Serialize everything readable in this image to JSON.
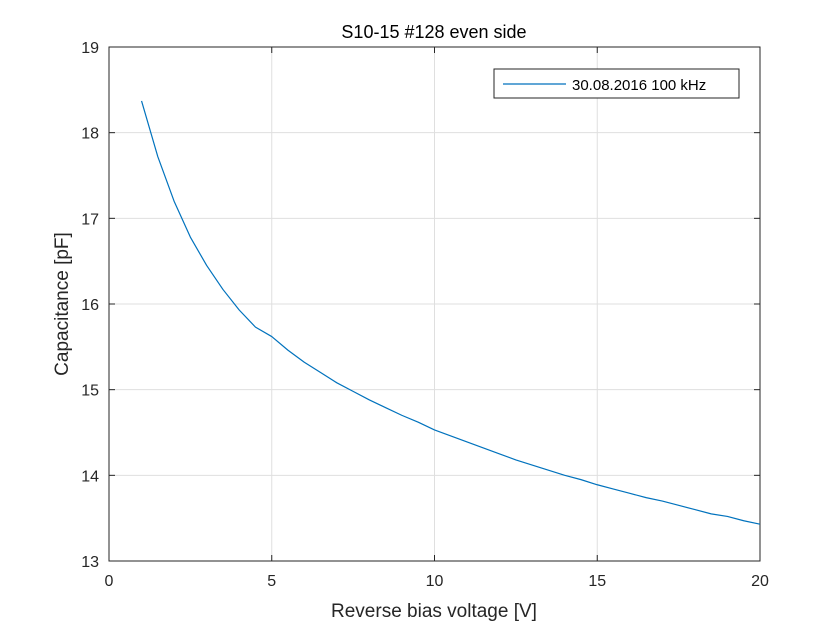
{
  "chart_data": {
    "type": "line",
    "title": "S10-15 #128 even side",
    "xlabel": "Reverse bias voltage [V]",
    "ylabel": "Capacitance [pF]",
    "xlim": [
      0,
      20
    ],
    "ylim": [
      13,
      19
    ],
    "xticks": [
      "0",
      "5",
      "10",
      "15",
      "20"
    ],
    "yticks": [
      "13",
      "14",
      "15",
      "16",
      "17",
      "18",
      "19"
    ],
    "grid": true,
    "legend_position": "top-right",
    "series": [
      {
        "name": "30.08.2016 100 kHz",
        "color": "#0072bd",
        "x": [
          1,
          1.5,
          2,
          2.5,
          3,
          3.5,
          4,
          4.5,
          5,
          5.5,
          6,
          6.5,
          7,
          7.5,
          8,
          8.5,
          9,
          9.5,
          10,
          10.5,
          11,
          11.5,
          12,
          12.5,
          13,
          13.5,
          14,
          14.5,
          15,
          15.5,
          16,
          16.5,
          17,
          17.5,
          18,
          18.5,
          19,
          19.5,
          20
        ],
        "y": [
          18.37,
          17.72,
          17.2,
          16.78,
          16.45,
          16.17,
          15.93,
          15.73,
          15.62,
          15.46,
          15.32,
          15.2,
          15.08,
          14.98,
          14.88,
          14.79,
          14.7,
          14.62,
          14.53,
          14.46,
          14.39,
          14.32,
          14.25,
          14.18,
          14.12,
          14.06,
          14.0,
          13.95,
          13.89,
          13.84,
          13.79,
          13.74,
          13.7,
          13.65,
          13.6,
          13.55,
          13.52,
          13.47,
          13.43
        ]
      }
    ]
  }
}
